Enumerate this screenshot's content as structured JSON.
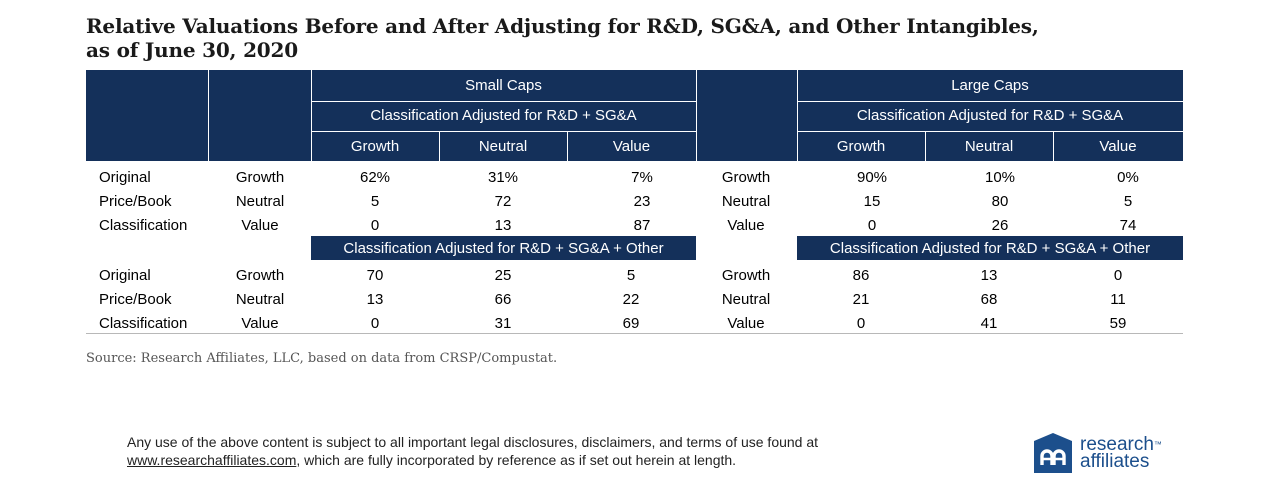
{
  "title_line1": "Relative Valuations Before and After Adjusting for R&D, SG&A, and Other Intangibles,",
  "title_line2": "as of June 30, 2020",
  "header": {
    "small_caps": "Small Caps",
    "large_caps": "Large Caps",
    "adj_rd_sga": "Classification Adjusted for R&D + SG&A",
    "adj_rd_sga_other": "Classification Adjusted for R&D + SG&A + Other",
    "growth": "Growth",
    "neutral": "Neutral",
    "value": "Value"
  },
  "row_labels": {
    "original": "Original",
    "price_book": "Price/Book",
    "classification": "Classification",
    "growth": "Growth",
    "neutral": "Neutral",
    "value": "Value"
  },
  "section1": {
    "small": [
      [
        "62%",
        "31%",
        "7%"
      ],
      [
        "5",
        "72",
        "23"
      ],
      [
        "0",
        "13",
        "87"
      ]
    ],
    "large": [
      [
        "90%",
        "10%",
        "0%"
      ],
      [
        "15",
        "80",
        "5"
      ],
      [
        "0",
        "26",
        "74"
      ]
    ]
  },
  "section2": {
    "small": [
      [
        "70",
        "25",
        "5"
      ],
      [
        "13",
        "66",
        "22"
      ],
      [
        "0",
        "31",
        "69"
      ]
    ],
    "large": [
      [
        "86",
        "13",
        "0"
      ],
      [
        "21",
        "68",
        "11"
      ],
      [
        "0",
        "41",
        "59"
      ]
    ]
  },
  "source": "Source: Research Affiliates, LLC, based on data from CRSP/Compustat.",
  "disclaimer_line1": "Any use of the above content is subject to all important legal disclosures, disclaimers, and terms of use found at",
  "disclaimer_link": "www.researchaffiliates.com",
  "disclaimer_line2_rest": ", which are fully incorporated by reference as if set out herein at length.",
  "logo": {
    "line1": "research",
    "line2": "affiliates",
    "mark": "™",
    "icon": "ra-logo-icon",
    "color": "#1c4f8c"
  },
  "colors": {
    "header_bg": "#14305a"
  }
}
